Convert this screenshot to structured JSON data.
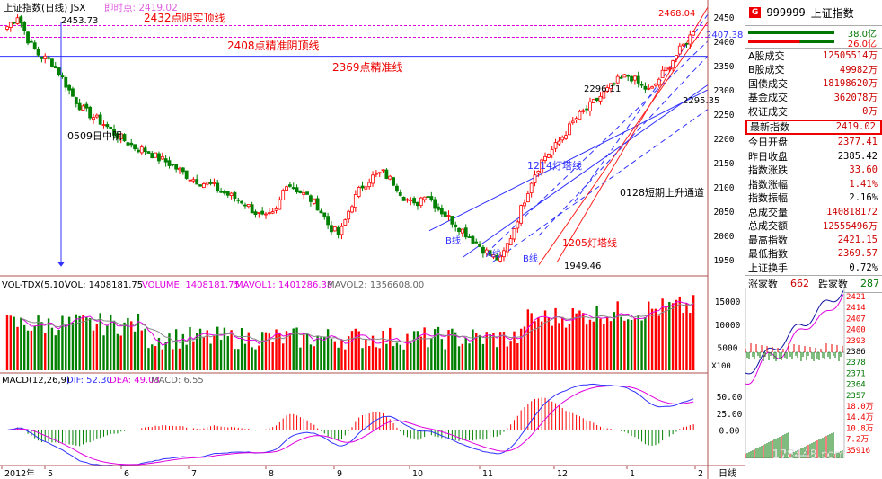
{
  "header": {
    "index_title": "上证指数(日线) JSX",
    "realtime_label": "即时点: 2419.02",
    "vol_label": "VOL-TDX(5,10)",
    "vol_vals": "VOL: 1408181.75",
    "volume_vals": "VOLUME: 1408181.75",
    "mavol1": "MAVOL1: 1401286.38",
    "mavol2": "MAVOL2: 1356608.00",
    "macd_label": "MACD(12,26,9)",
    "dif": "DIF: 52.30",
    "dea": "DEA: 49.03",
    "macd": "MACD: 6.55"
  },
  "chart_data": {
    "type": "candlestick",
    "title": "上证指数(日线)",
    "ylim": [
      1930,
      2470
    ],
    "y_ticks": [
      "2450",
      "2400",
      "2350",
      "2300",
      "2250",
      "2200",
      "2150",
      "2100",
      "2050",
      "2000",
      "1950"
    ],
    "x_ticks": [
      "2012年",
      "5",
      "6",
      "7",
      "8",
      "9",
      "10",
      "11",
      "12",
      "1",
      "2"
    ],
    "price_path": [
      2430,
      2453.73,
      2400,
      2370,
      2360,
      2330,
      2290,
      2260,
      2245,
      2230,
      2210,
      2195,
      2180,
      2175,
      2160,
      2150,
      2135,
      2120,
      2110,
      2105,
      2090,
      2080,
      2070,
      2050,
      2035,
      2045,
      2110,
      2095,
      2080,
      2060,
      2020,
      2000,
      2060,
      2100,
      2120,
      2130,
      2110,
      2080,
      2060,
      2090,
      2060,
      2040,
      2020,
      2000,
      1980,
      1960,
      1949.46,
      2000,
      2060,
      2120,
      2160,
      2180,
      2210,
      2240,
      2260,
      2280,
      2300,
      2320,
      2330,
      2310,
      2296.11,
      2330,
      2360,
      2390,
      2419.02
    ],
    "high_low_labels": [
      "2453.73",
      "2468.04",
      "1949.46",
      "2296.11",
      "2295.35",
      "2407.38"
    ],
    "annotations": [
      "2432点阴实顶线",
      "2408点精准阴顶线",
      "2369点精准线",
      "0509日中阴",
      "1214灯塔线",
      "1205灯塔线",
      "0128短期上升通道",
      "B线",
      "A线",
      "B线"
    ],
    "vol_ylim": [
      0,
      17000
    ],
    "vol_ticks": [
      "15000",
      "10000",
      "5000"
    ],
    "vol_unit": "X100",
    "macd_ticks": [
      "50.00",
      "25.00",
      "0.00"
    ],
    "intraday_ticks": [
      "2421",
      "2414",
      "2407",
      "2400",
      "2393",
      "2386",
      "2378",
      "2371",
      "2364",
      "2357",
      "18.0万",
      "14.4万",
      "10.8万",
      "7.2万",
      "35916"
    ],
    "intraday_close": "2419.02"
  },
  "right_panel": {
    "code": "999999",
    "name": "上证指数",
    "bar_red_val": "38.0亿",
    "bar_green_val": "26.0亿",
    "rows": [
      {
        "label": "A股成交",
        "value": "12505514万",
        "hl": false,
        "blk": false
      },
      {
        "label": "B股成交",
        "value": "49982万",
        "hl": false,
        "blk": false
      },
      {
        "label": "国债成交",
        "value": "18198620万",
        "hl": false,
        "blk": false
      },
      {
        "label": "基金成交",
        "value": "362078万",
        "hl": false,
        "blk": false
      },
      {
        "label": "权证成交",
        "value": "0万",
        "hl": false,
        "blk": false
      },
      {
        "label": "最新指数",
        "value": "2419.02",
        "hl": true,
        "blk": false
      },
      {
        "label": "今日开盘",
        "value": "2377.41",
        "hl": false,
        "blk": false
      },
      {
        "label": "昨日收盘",
        "value": "2385.42",
        "hl": false,
        "blk": true
      },
      {
        "label": "指数涨跌",
        "value": "33.60",
        "hl": false,
        "blk": false
      },
      {
        "label": "指数涨幅",
        "value": "1.41%",
        "hl": false,
        "blk": false
      },
      {
        "label": "指数振幅",
        "value": "2.16%",
        "hl": false,
        "blk": true
      },
      {
        "label": "总成交量",
        "value": "140818172",
        "hl": false,
        "blk": false
      },
      {
        "label": "总成交额",
        "value": "12555496万",
        "hl": false,
        "blk": false
      },
      {
        "label": "最高指数",
        "value": "2421.15",
        "hl": false,
        "blk": false
      },
      {
        "label": "最低指数",
        "value": "2369.57",
        "hl": false,
        "blk": false
      },
      {
        "label": "上证换手",
        "value": "0.72%",
        "hl": false,
        "blk": true
      }
    ],
    "up_label": "涨家数",
    "up_count": "662",
    "down_label": "跌家数",
    "down_count": "287",
    "period_label": "日线",
    "watermark": "178448.com"
  },
  "colors": {
    "up": "#ff0000",
    "down": "#008000",
    "ma1": "#00a000",
    "ma2": "#ff00ff",
    "line_blue": "#3030ff",
    "line_red": "#ff2020"
  }
}
